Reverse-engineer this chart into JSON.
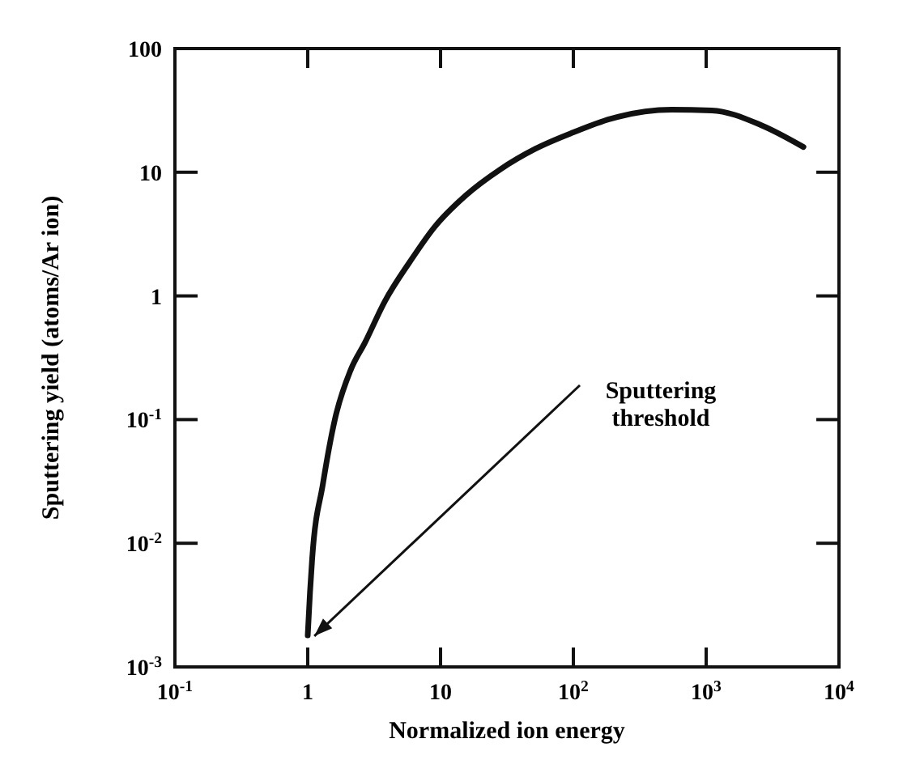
{
  "chart_data": {
    "type": "line",
    "xlabel": "Normalized ion energy",
    "ylabel": "Sputtering yield (atoms/Ar ion)",
    "log": "xy",
    "grid": false,
    "marker": "none",
    "line_style": "solid",
    "xlim": [
      0.1,
      10000
    ],
    "ylim": [
      0.001,
      100
    ],
    "xticks": [
      {
        "value": 0.1,
        "label": "10$^{-1}$"
      },
      1,
      10,
      {
        "value": 100,
        "label": "10$^{2}$"
      },
      {
        "value": 1000,
        "label": "10$^{3}$"
      },
      {
        "value": 10000,
        "label": "10$^{4}$"
      }
    ],
    "yticks": [
      {
        "value": 0.001,
        "label": "10$^{-3}$"
      },
      {
        "value": 0.01,
        "label": "10$^{-2}$"
      },
      {
        "value": 0.1,
        "label": "10$^{-1}$"
      },
      1,
      10,
      100
    ],
    "x": [
      1,
      1.04,
      1.08,
      1.3,
      1.6,
      2.1,
      2.7,
      3.8,
      5.9,
      9,
      15.5,
      28,
      52,
      100,
      190,
      550,
      1100,
      2600,
      5400
    ],
    "series": [
      {
        "color": "#111111",
        "values": [
          0.0018,
          0.004,
          0.0075,
          0.03,
          0.1,
          0.25,
          0.42,
          0.9,
          1.9,
          3.6,
          6.5,
          10.5,
          15.5,
          21,
          27,
          32,
          31.6,
          24,
          16
        ]
      }
    ],
    "annotations": [
      "Sputtering threshold"
    ]
  }
}
